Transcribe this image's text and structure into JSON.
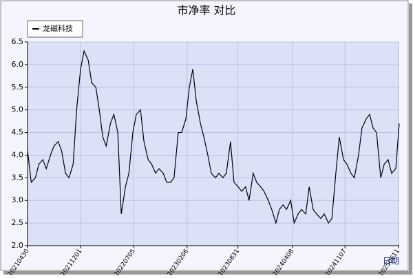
{
  "chart_data": {
    "type": "line",
    "title": "市净率  对比",
    "x_label": "日期",
    "x": [
      "20210430",
      "20210515",
      "20210601",
      "20210615",
      "20210701",
      "20210715",
      "20210801",
      "20210815",
      "20210901",
      "20210915",
      "20211001",
      "20211015",
      "20211101",
      "20211115",
      "20211201",
      "20211215",
      "20220101",
      "20220115",
      "20220201",
      "20220215",
      "20220301",
      "20220315",
      "20220401",
      "20220415",
      "20220501",
      "20220515",
      "20220601",
      "20220615",
      "20220701",
      "20220715",
      "20220801",
      "20220815",
      "20220901",
      "20220915",
      "20221001",
      "20221015",
      "20221101",
      "20221115",
      "20221201",
      "20221215",
      "20230101",
      "20230115",
      "20230201",
      "20230215",
      "20230301",
      "20230315",
      "20230401",
      "20230415",
      "20230501",
      "20230515",
      "20230601",
      "20230615",
      "20230701",
      "20230715",
      "20230801",
      "20230815",
      "20230901",
      "20230915",
      "20231001",
      "20231015",
      "20231101",
      "20231115",
      "20231201",
      "20231215",
      "20240101",
      "20240115",
      "20240201",
      "20240215",
      "20240301",
      "20240315",
      "20240401",
      "20240415",
      "20240501",
      "20240515",
      "20240601",
      "20240615",
      "20240701",
      "20240715",
      "20240801",
      "20240815",
      "20240901",
      "20240915",
      "20241001",
      "20241015",
      "20241101",
      "20241115",
      "20241201",
      "20241215",
      "20250101",
      "20250115",
      "20250201",
      "20250215",
      "20250301",
      "20250315",
      "20250401",
      "20250415",
      "20250501",
      "20250515",
      "20250601",
      "20250615"
    ],
    "series": [
      {
        "name": "龙磁科技",
        "color": "#000000",
        "values": [
          4.1,
          3.4,
          3.5,
          3.8,
          3.9,
          3.7,
          4.0,
          4.2,
          4.3,
          4.1,
          3.6,
          3.5,
          3.8,
          5.0,
          5.9,
          6.3,
          6.1,
          5.6,
          5.5,
          5.0,
          4.4,
          4.2,
          4.7,
          4.9,
          4.5,
          2.7,
          3.3,
          3.6,
          4.5,
          4.9,
          5.0,
          4.3,
          3.9,
          3.8,
          3.6,
          3.7,
          3.6,
          3.4,
          3.4,
          3.5,
          4.5,
          4.5,
          4.8,
          5.5,
          5.9,
          5.2,
          4.7,
          4.4,
          4.0,
          3.6,
          3.5,
          3.6,
          3.5,
          3.6,
          4.3,
          3.4,
          3.3,
          3.2,
          3.3,
          3.0,
          3.6,
          3.4,
          3.3,
          3.2,
          3.0,
          2.8,
          2.5,
          2.8,
          2.9,
          2.8,
          3.0,
          2.5,
          2.7,
          2.8,
          2.7,
          3.3,
          2.8,
          2.7,
          2.6,
          2.7,
          2.5,
          2.6,
          3.6,
          4.4,
          3.9,
          3.8,
          3.6,
          3.5,
          4.0,
          4.6,
          4.8,
          4.9,
          4.6,
          4.5,
          3.5,
          3.8,
          3.9,
          3.6,
          3.7,
          4.7
        ]
      }
    ],
    "xlim": [
      "20210430",
      "20250615"
    ],
    "xticks": [
      "20210430",
      "20211201",
      "20220705",
      "20230206",
      "20230831",
      "20240408",
      "20241107",
      "20250611"
    ],
    "ylim": [
      2,
      6.5
    ],
    "yticks": [
      {
        "value": 2,
        "label": "2.0"
      },
      2.5,
      {
        "value": 3,
        "label": "3.0"
      },
      3.5,
      {
        "value": 4,
        "label": "4.0"
      },
      4.5,
      {
        "value": 5,
        "label": "5.0"
      },
      5.5,
      {
        "value": 6,
        "label": "6.0"
      },
      6.5
    ],
    "grid": true
  }
}
